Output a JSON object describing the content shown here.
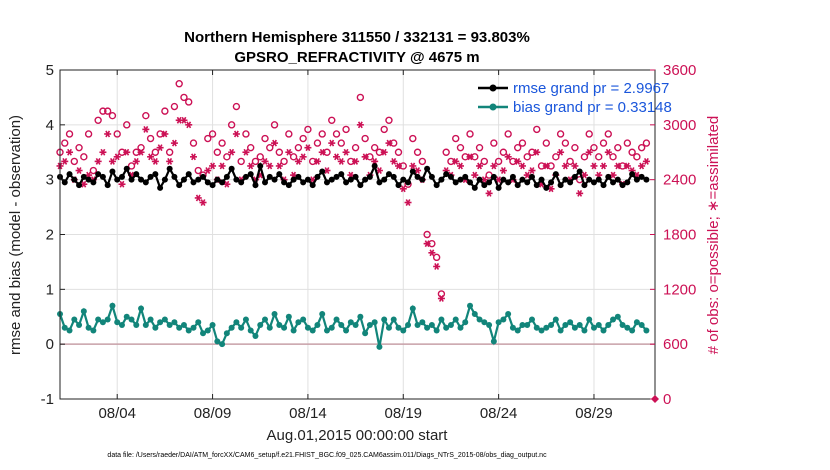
{
  "chart_data": {
    "type": "line",
    "title_line1": "Northern Hemisphere 311550 / 332131 = 93.803%",
    "title_line2": "GPSRO_REFRACTIVITY @ 4675 m",
    "xlabel": "Aug.01,2015 00:00:00 start",
    "ylabel_left": "rmse and bias (model - observation)",
    "ylabel_right": "# of obs: o=possible; ∗=assimilated",
    "footer": "data file: /Users/raeder/DAI/ATM_forcXX/CAM6_setup/f.e21.FHIST_BGC.f09_025.CAM6assim.011/Diags_NTrS_2015-08/obs_diag_output.nc",
    "xlim": [
      1,
      32.2
    ],
    "ylim_left": [
      -1,
      5
    ],
    "ylim_right": [
      0,
      3600
    ],
    "x_ticks": [
      4,
      9,
      14,
      19,
      24,
      29
    ],
    "x_tick_labels": [
      "08/04",
      "08/09",
      "08/14",
      "08/19",
      "08/24",
      "08/29"
    ],
    "y_left_ticks": [
      -1,
      0,
      1,
      2,
      3,
      4,
      5
    ],
    "y_left_tick_labels": [
      "-1",
      "0",
      "1",
      "2",
      "3",
      "4",
      "5"
    ],
    "y_right_ticks": [
      0,
      600,
      1200,
      1800,
      2400,
      3000,
      3600
    ],
    "y_right_tick_labels": [
      "0",
      "600",
      "1200",
      "1800",
      "2400",
      "3000",
      "3600"
    ],
    "zero_line": 0,
    "legend_position": "top-right",
    "series": [
      {
        "name": "rmse grand pr = 2.9967",
        "color": "#000000",
        "axis": "left",
        "marker": "circle",
        "x": [
          1.0,
          1.25,
          1.5,
          1.75,
          2.0,
          2.25,
          2.5,
          2.75,
          3.0,
          3.25,
          3.5,
          3.75,
          4.0,
          4.25,
          4.5,
          4.75,
          5.0,
          5.25,
          5.5,
          5.75,
          6.0,
          6.25,
          6.5,
          6.75,
          7.0,
          7.25,
          7.5,
          7.75,
          8.0,
          8.25,
          8.5,
          8.75,
          9.0,
          9.25,
          9.5,
          9.75,
          10.0,
          10.25,
          10.5,
          10.75,
          11.0,
          11.25,
          11.5,
          11.75,
          12.0,
          12.25,
          12.5,
          12.75,
          13.0,
          13.25,
          13.5,
          13.75,
          14.0,
          14.25,
          14.5,
          14.75,
          15.0,
          15.25,
          15.5,
          15.75,
          16.0,
          16.25,
          16.5,
          16.75,
          17.0,
          17.25,
          17.5,
          17.75,
          18.0,
          18.25,
          18.5,
          18.75,
          19.0,
          19.25,
          19.5,
          19.75,
          20.0,
          20.25,
          20.5,
          20.75,
          21.0,
          21.25,
          21.5,
          21.75,
          22.0,
          22.25,
          22.5,
          22.75,
          23.0,
          23.25,
          23.5,
          23.75,
          24.0,
          24.25,
          24.5,
          24.75,
          25.0,
          25.25,
          25.5,
          25.75,
          26.0,
          26.25,
          26.5,
          26.75,
          27.0,
          27.25,
          27.5,
          27.75,
          28.0,
          28.25,
          28.5,
          28.75,
          29.0,
          29.25,
          29.5,
          29.75,
          30.0,
          30.25,
          30.5,
          30.75,
          31.0,
          31.25,
          31.5,
          31.75
        ],
        "values": [
          3.05,
          2.95,
          3.1,
          3.0,
          2.9,
          3.05,
          3.0,
          2.95,
          3.1,
          3.05,
          2.9,
          3.15,
          3.0,
          3.05,
          3.2,
          3.0,
          3.1,
          3.0,
          2.95,
          3.05,
          3.1,
          2.85,
          3.0,
          3.2,
          3.05,
          2.9,
          3.0,
          3.1,
          2.95,
          3.0,
          3.05,
          2.95,
          2.9,
          3.0,
          2.95,
          3.05,
          3.2,
          3.0,
          2.95,
          3.05,
          3.1,
          2.9,
          3.25,
          2.95,
          3.05,
          3.0,
          3.1,
          2.95,
          2.9,
          3.0,
          3.05,
          2.95,
          3.0,
          2.9,
          3.05,
          3.15,
          2.95,
          3.0,
          3.05,
          3.1,
          2.95,
          3.0,
          3.05,
          2.9,
          3.0,
          3.05,
          3.25,
          2.95,
          3.0,
          3.1,
          3.05,
          2.9,
          3.0,
          2.95,
          3.15,
          3.05,
          3.0,
          3.2,
          3.05,
          2.9,
          3.0,
          3.1,
          3.05,
          2.95,
          3.0,
          3.05,
          2.95,
          2.85,
          3.0,
          2.9,
          2.95,
          3.05,
          2.85,
          3.0,
          2.95,
          3.05,
          2.9,
          3.0,
          2.95,
          3.05,
          2.9,
          3.0,
          2.85,
          2.95,
          3.1,
          2.9,
          3.0,
          2.95,
          3.05,
          3.15,
          2.9,
          3.0,
          2.95,
          3.0,
          2.9,
          3.05,
          2.95,
          3.0,
          2.9,
          2.95,
          3.1,
          3.0,
          3.05,
          3.0
        ],
        "notes": "approximate readings"
      },
      {
        "name": "bias grand pr = 0.33148",
        "color": "#12857a",
        "axis": "left",
        "marker": "circle",
        "x": [
          1.0,
          1.25,
          1.5,
          1.75,
          2.0,
          2.25,
          2.5,
          2.75,
          3.0,
          3.25,
          3.5,
          3.75,
          4.0,
          4.25,
          4.5,
          4.75,
          5.0,
          5.25,
          5.5,
          5.75,
          6.0,
          6.25,
          6.5,
          6.75,
          7.0,
          7.25,
          7.5,
          7.75,
          8.0,
          8.25,
          8.5,
          8.75,
          9.0,
          9.25,
          9.5,
          9.75,
          10.0,
          10.25,
          10.5,
          10.75,
          11.0,
          11.25,
          11.5,
          11.75,
          12.0,
          12.25,
          12.5,
          12.75,
          13.0,
          13.25,
          13.5,
          13.75,
          14.0,
          14.25,
          14.5,
          14.75,
          15.0,
          15.25,
          15.5,
          15.75,
          16.0,
          16.25,
          16.5,
          16.75,
          17.0,
          17.25,
          17.5,
          17.75,
          18.0,
          18.25,
          18.5,
          18.75,
          19.0,
          19.25,
          19.5,
          19.75,
          20.0,
          20.25,
          20.5,
          20.75,
          21.0,
          21.25,
          21.5,
          21.75,
          22.0,
          22.25,
          22.5,
          22.75,
          23.0,
          23.25,
          23.5,
          23.75,
          24.0,
          24.25,
          24.5,
          24.75,
          25.0,
          25.25,
          25.5,
          25.75,
          26.0,
          26.25,
          26.5,
          26.75,
          27.0,
          27.25,
          27.5,
          27.75,
          28.0,
          28.25,
          28.5,
          28.75,
          29.0,
          29.25,
          29.5,
          29.75,
          30.0,
          30.25,
          30.5,
          30.75,
          31.0,
          31.25,
          31.5,
          31.75
        ],
        "values": [
          0.55,
          0.3,
          0.25,
          0.45,
          0.35,
          0.6,
          0.3,
          0.25,
          0.45,
          0.4,
          0.45,
          0.7,
          0.4,
          0.35,
          0.5,
          0.45,
          0.35,
          0.65,
          0.35,
          0.45,
          0.3,
          0.4,
          0.45,
          0.35,
          0.4,
          0.3,
          0.35,
          0.25,
          0.3,
          0.4,
          0.2,
          0.25,
          0.35,
          0.05,
          0.0,
          0.2,
          0.3,
          0.4,
          0.3,
          0.45,
          0.25,
          0.15,
          0.35,
          0.45,
          0.3,
          0.55,
          0.35,
          0.3,
          0.5,
          0.25,
          0.4,
          0.45,
          0.3,
          0.25,
          0.35,
          0.55,
          0.25,
          0.3,
          0.45,
          0.35,
          0.25,
          0.4,
          0.35,
          0.5,
          0.2,
          0.35,
          0.4,
          -0.05,
          0.45,
          0.3,
          0.45,
          0.3,
          0.25,
          0.35,
          0.65,
          0.35,
          0.4,
          0.3,
          0.35,
          0.25,
          0.45,
          0.3,
          0.35,
          0.45,
          0.3,
          0.4,
          0.7,
          0.55,
          0.45,
          0.4,
          0.35,
          0.05,
          0.4,
          0.45,
          0.55,
          0.3,
          0.25,
          0.35,
          0.35,
          0.45,
          0.3,
          0.25,
          0.3,
          0.35,
          0.45,
          0.25,
          0.35,
          0.4,
          0.3,
          0.35,
          0.25,
          0.45,
          0.3,
          0.35,
          0.25,
          0.35,
          0.45,
          0.5,
          0.35,
          0.3,
          0.25,
          0.4,
          0.35,
          0.25
        ],
        "notes": "approximate readings"
      },
      {
        "name": "obs possible",
        "color": "#cc1155",
        "axis": "right",
        "marker": "open-circle",
        "x": [
          1.0,
          1.25,
          1.5,
          1.75,
          2.0,
          2.25,
          2.5,
          2.75,
          3.0,
          3.25,
          3.5,
          3.75,
          4.0,
          4.25,
          4.5,
          4.75,
          5.0,
          5.25,
          5.5,
          5.75,
          6.0,
          6.25,
          6.5,
          6.75,
          7.0,
          7.25,
          7.5,
          7.75,
          8.0,
          8.25,
          8.5,
          8.75,
          9.0,
          9.25,
          9.5,
          9.75,
          10.0,
          10.25,
          10.5,
          10.75,
          11.0,
          11.25,
          11.5,
          11.75,
          12.0,
          12.25,
          12.5,
          12.75,
          13.0,
          13.25,
          13.5,
          13.75,
          14.0,
          14.25,
          14.5,
          14.75,
          15.0,
          15.25,
          15.5,
          15.75,
          16.0,
          16.25,
          16.5,
          16.75,
          17.0,
          17.25,
          17.5,
          17.75,
          18.0,
          18.25,
          18.5,
          18.75,
          19.0,
          19.25,
          19.5,
          19.75,
          20.0,
          20.25,
          20.5,
          20.75,
          21.0,
          21.25,
          21.5,
          21.75,
          22.0,
          22.25,
          22.5,
          22.75,
          23.0,
          23.25,
          23.5,
          23.75,
          24.0,
          24.25,
          24.5,
          24.75,
          25.0,
          25.25,
          25.5,
          25.75,
          26.0,
          26.25,
          26.5,
          26.75,
          27.0,
          27.25,
          27.5,
          27.75,
          28.0,
          28.25,
          28.5,
          28.75,
          29.0,
          29.25,
          29.5,
          29.75,
          30.0,
          30.25,
          30.5,
          30.75,
          31.0,
          31.25,
          31.5,
          31.75
        ],
        "values": [
          2700,
          2800,
          2900,
          2600,
          2750,
          2650,
          2900,
          2500,
          3050,
          3150,
          3150,
          3100,
          2900,
          2700,
          3000,
          2550,
          2700,
          2750,
          3100,
          2850,
          2700,
          2900,
          3150,
          2700,
          3200,
          3450,
          3300,
          3250,
          2800,
          2500,
          2450,
          2850,
          2900,
          2700,
          2800,
          2650,
          3000,
          3200,
          2600,
          2900,
          2750,
          2600,
          2650,
          2850,
          2750,
          3000,
          2700,
          2600,
          2900,
          2650,
          2750,
          2850,
          2950,
          2600,
          2800,
          2900,
          2700,
          3050,
          2900,
          2800,
          2950,
          2600,
          2750,
          3300,
          2850,
          2650,
          2750,
          2700,
          2950,
          3050,
          2800,
          2700,
          2550,
          2350,
          2850,
          2700,
          2600,
          1800,
          1700,
          1550,
          1150,
          2700,
          2600,
          2850,
          2750,
          2650,
          2900,
          2650,
          2750,
          2600,
          2450,
          2800,
          2600,
          2700,
          2900,
          2600,
          2750,
          2800,
          2650,
          2700,
          2950,
          2550,
          2800,
          2550,
          2650,
          2900,
          2800,
          2600,
          2750,
          2400,
          2650,
          2900,
          2750,
          2650,
          2800,
          2900,
          2650,
          2750,
          2550,
          2800,
          2700,
          2650,
          2750,
          2800
        ],
        "notes": "approximate readings"
      },
      {
        "name": "obs assimilated",
        "color": "#cc1155",
        "axis": "right",
        "marker": "asterisk",
        "x": [
          1.0,
          1.25,
          1.5,
          1.75,
          2.0,
          2.25,
          2.5,
          2.75,
          3.0,
          3.25,
          3.5,
          3.75,
          4.0,
          4.25,
          4.5,
          4.75,
          5.0,
          5.25,
          5.5,
          5.75,
          6.0,
          6.25,
          6.5,
          6.75,
          7.0,
          7.25,
          7.5,
          7.75,
          8.0,
          8.25,
          8.5,
          8.75,
          9.0,
          9.25,
          9.5,
          9.75,
          10.0,
          10.25,
          10.5,
          10.75,
          11.0,
          11.25,
          11.5,
          11.75,
          12.0,
          12.25,
          12.5,
          12.75,
          13.0,
          13.25,
          13.5,
          13.75,
          14.0,
          14.25,
          14.5,
          14.75,
          15.0,
          15.25,
          15.5,
          15.75,
          16.0,
          16.25,
          16.5,
          16.75,
          17.0,
          17.25,
          17.5,
          17.75,
          18.0,
          18.25,
          18.5,
          18.75,
          19.0,
          19.25,
          19.5,
          19.75,
          20.0,
          20.25,
          20.5,
          20.75,
          21.0,
          21.25,
          21.5,
          21.75,
          22.0,
          22.25,
          22.5,
          22.75,
          23.0,
          23.25,
          23.5,
          23.75,
          24.0,
          24.25,
          24.5,
          24.75,
          25.0,
          25.25,
          25.5,
          25.75,
          26.0,
          26.25,
          26.5,
          26.75,
          27.0,
          27.25,
          27.5,
          27.75,
          28.0,
          28.25,
          28.5,
          28.75,
          29.0,
          29.25,
          29.5,
          29.75,
          30.0,
          30.25,
          30.5,
          30.75,
          31.0,
          31.25,
          31.5,
          31.75
        ],
        "values": [
          2550,
          2600,
          2700,
          2400,
          2500,
          2350,
          2450,
          2400,
          2600,
          2700,
          2900,
          2600,
          2650,
          2350,
          2700,
          2450,
          2600,
          2700,
          2950,
          2650,
          2600,
          2750,
          2900,
          2600,
          2800,
          3050,
          3050,
          3000,
          2650,
          2200,
          2150,
          2500,
          2550,
          2400,
          2550,
          2350,
          2700,
          2900,
          2400,
          2700,
          2550,
          2400,
          2450,
          2600,
          2550,
          2800,
          2550,
          2400,
          2700,
          2450,
          2600,
          2650,
          2750,
          2400,
          2600,
          2700,
          2500,
          2800,
          2650,
          2600,
          2700,
          2450,
          2600,
          3000,
          2650,
          2450,
          2600,
          2500,
          2700,
          2800,
          2600,
          2550,
          2300,
          2150,
          2550,
          2500,
          2400,
          1700,
          1600,
          1450,
          1100,
          2500,
          2450,
          2600,
          2550,
          2400,
          2650,
          2450,
          2550,
          2400,
          2250,
          2550,
          2400,
          2500,
          2650,
          2400,
          2600,
          2550,
          2450,
          2500,
          2700,
          2350,
          2550,
          2300,
          2450,
          2700,
          2550,
          2400,
          2550,
          2250,
          2450,
          2700,
          2550,
          2450,
          2550,
          2700,
          2450,
          2550,
          2350,
          2550,
          2500,
          2450,
          2550,
          2600
        ],
        "notes": "approximate readings"
      }
    ]
  },
  "colors": {
    "rmse": "#000000",
    "bias": "#12857a",
    "obs": "#cc1155",
    "legend_text": "#1a56db",
    "zero_line": "#c8a0a8",
    "grid": "#e0e0e0"
  }
}
